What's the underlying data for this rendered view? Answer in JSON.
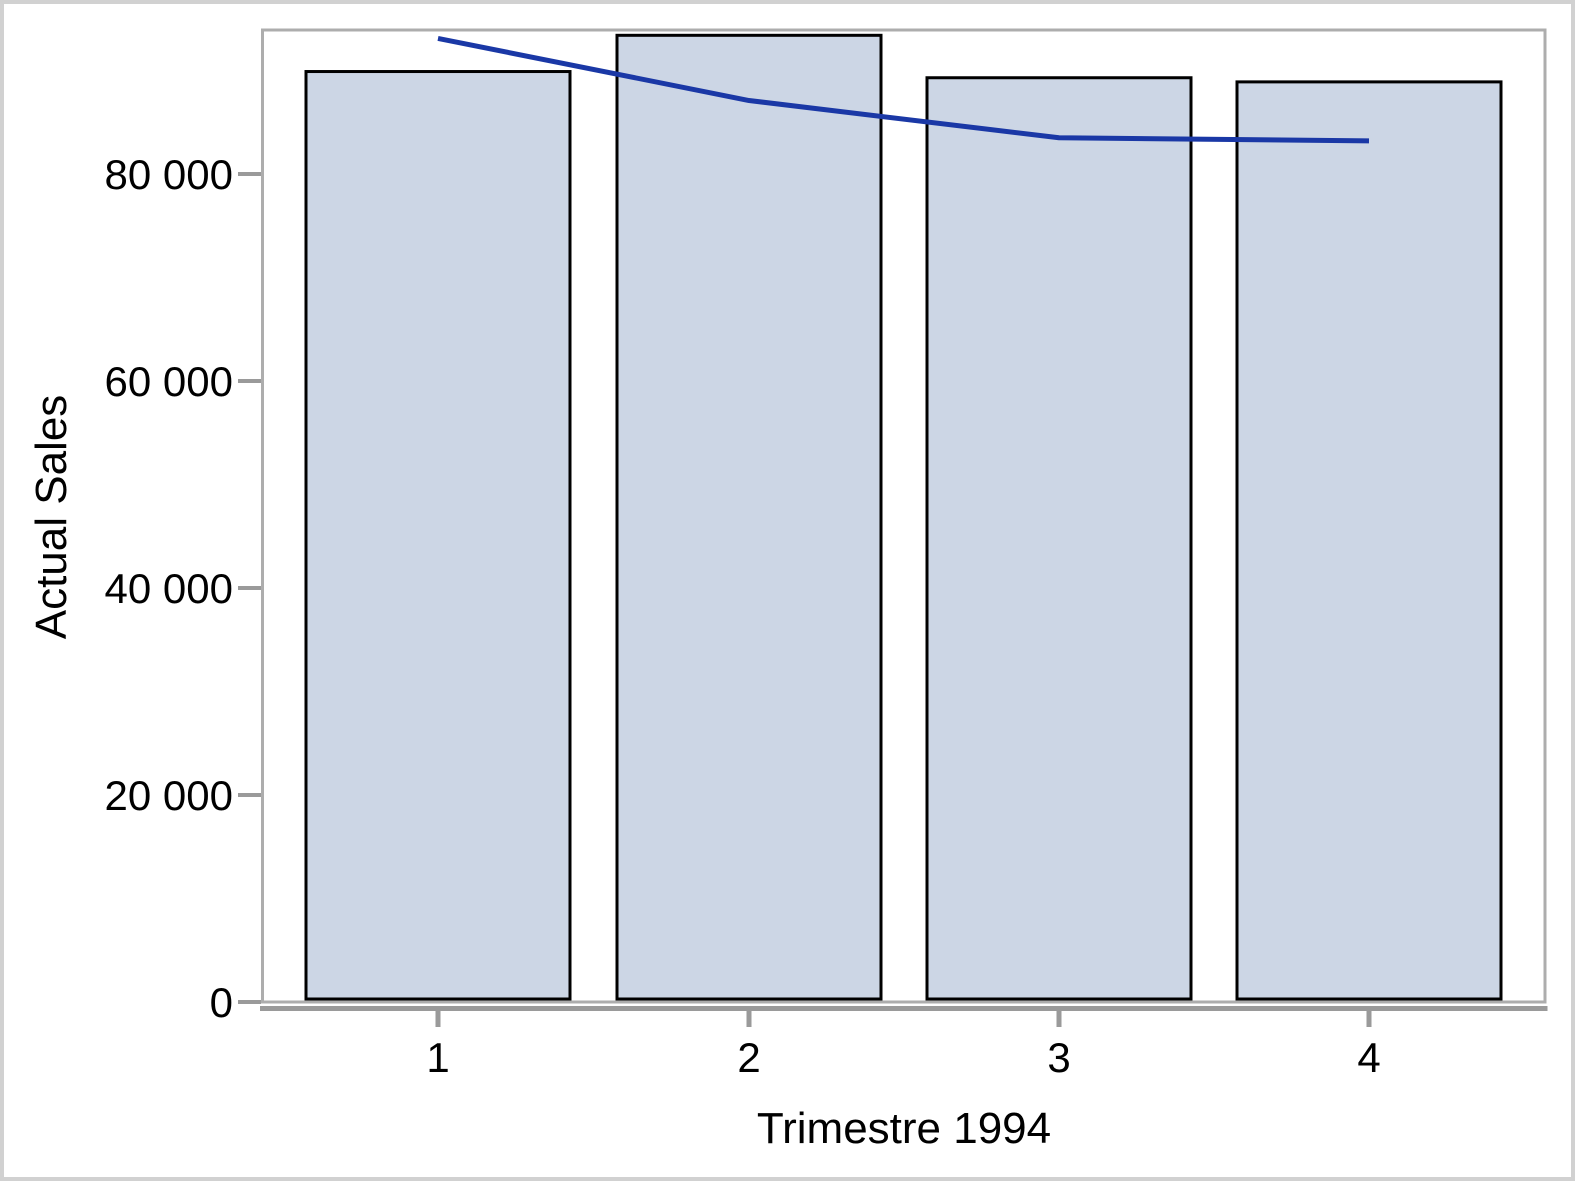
{
  "chart_data": {
    "type": "bar",
    "subtype": "bar-with-line-overlay",
    "title": "",
    "xlabel": "Trimestre 1994",
    "ylabel": "Actual Sales",
    "categories": [
      "1",
      "2",
      "3",
      "4"
    ],
    "series": [
      {
        "name": "actual-sales-bars",
        "type": "bar",
        "values": [
          89900,
          93400,
          89300,
          88900
        ],
        "fill": "#CCD6E5",
        "stroke": "#000000"
      },
      {
        "name": "trend-line",
        "type": "line",
        "values": [
          93100,
          87100,
          83500,
          83200
        ],
        "stroke": "#1A38A6"
      }
    ],
    "y_axis": {
      "min": 0,
      "max": 93900,
      "ticks": [
        0,
        20000,
        40000,
        60000,
        80000
      ],
      "tick_labels": [
        "0",
        "20 000",
        "40 000",
        "60 000",
        "80 000"
      ]
    },
    "x_axis": {
      "tick_labels": [
        "1",
        "2",
        "3",
        "4"
      ]
    },
    "grid": false,
    "legend": false,
    "colors": {
      "bar_fill": "#CCD6E5",
      "bar_border": "#000000",
      "line": "#1A38A6",
      "wall_border": "#ADADAD",
      "axis_line": "#9A9A9A",
      "outer_frame": "#D1D1D1",
      "text": "#000000",
      "background": "#FFFFFF"
    }
  }
}
